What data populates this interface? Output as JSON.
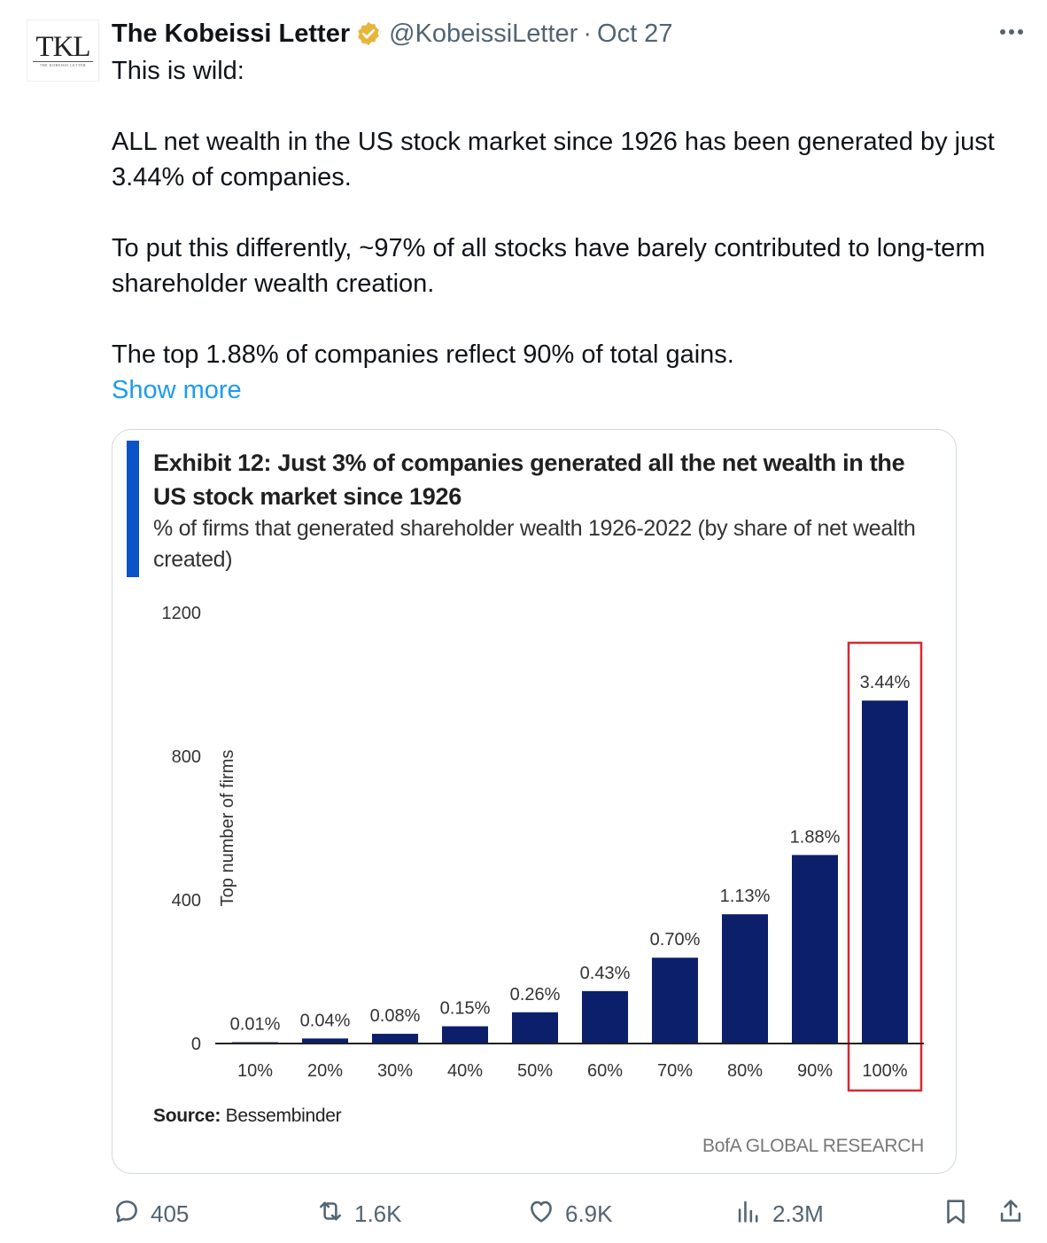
{
  "tweet": {
    "author_name": "The Kobeissi Letter",
    "handle": "@KobeissiLetter",
    "separator": "·",
    "date": "Oct 27",
    "avatar_monogram": "TKL",
    "avatar_caption": "THE KOBEISSI LETTER",
    "paragraphs": [
      "This is wild:",
      "ALL net wealth in the US stock market since 1926 has been generated by just 3.44% of companies.",
      "To put this differently, ~97% of all stocks have barely contributed to long-term shareholder wealth creation.",
      "The top 1.88% of companies reflect 90% of total gains."
    ],
    "show_more": "Show more",
    "metrics": {
      "replies": "405",
      "reposts": "1.6K",
      "likes": "6.9K",
      "views": "2.3M"
    },
    "icons": [
      "verified-badge-icon",
      "more-icon",
      "reply-icon",
      "repost-icon",
      "like-icon",
      "views-icon",
      "bookmark-icon",
      "share-icon"
    ]
  },
  "exhibit": {
    "title": "Exhibit 12: Just 3% of companies generated all the net wealth in the US stock market since 1926",
    "subtitle": "% of firms that generated shareholder wealth 1926-2022 (by share of net wealth created)",
    "source_label": "Source:",
    "source_value": "Bessembinder",
    "brand": "BofA GLOBAL RESEARCH"
  },
  "colors": {
    "bar": "#0c1f6b",
    "accent": "#0a54c7",
    "highlight": "#d8282f",
    "link": "#1d9bf0",
    "verified": "#e8b53a"
  },
  "chart_data": {
    "type": "bar",
    "title": "Exhibit 12: Just 3% of companies generated all the net wealth in the US stock market since 1926",
    "xlabel": "",
    "ylabel": "Top number of firms",
    "ylim": [
      0,
      1200
    ],
    "yticks": [
      0,
      400,
      800,
      1200
    ],
    "categories": [
      "10%",
      "20%",
      "30%",
      "40%",
      "50%",
      "60%",
      "70%",
      "80%",
      "90%",
      "100%"
    ],
    "values": [
      3,
      14,
      27,
      48,
      87,
      146,
      239,
      360,
      525,
      955
    ],
    "data_labels": [
      "0.01%",
      "0.04%",
      "0.08%",
      "0.15%",
      "0.26%",
      "0.43%",
      "0.70%",
      "1.13%",
      "1.88%",
      "3.44%"
    ],
    "highlight_category": "100%",
    "grid": false
  }
}
